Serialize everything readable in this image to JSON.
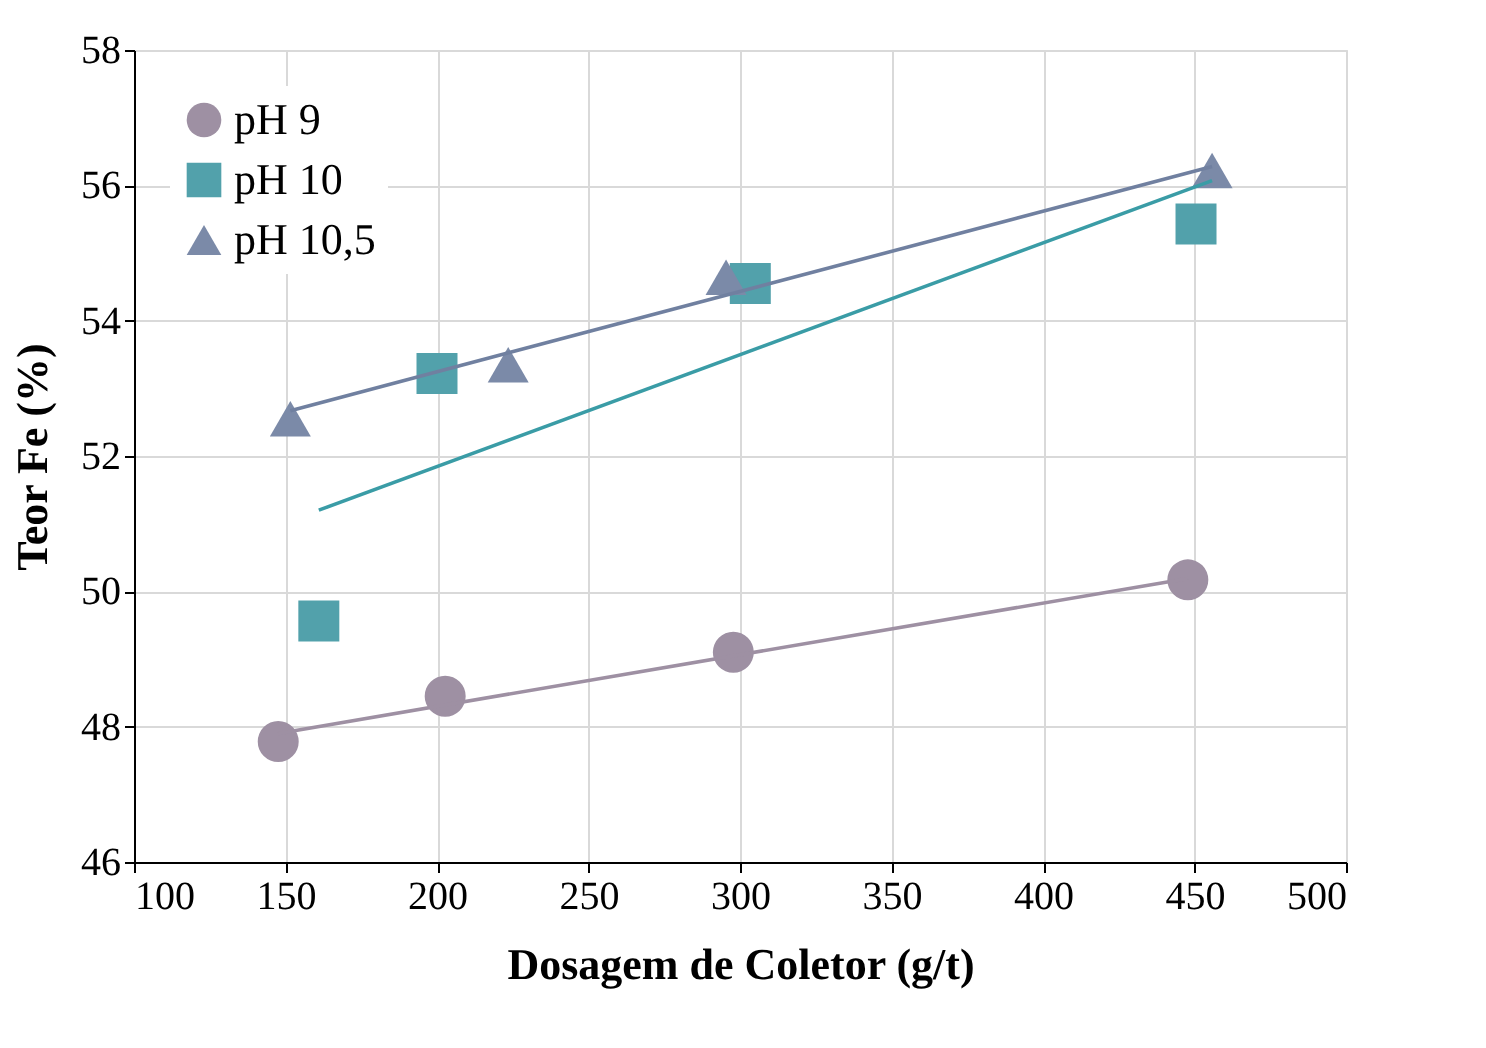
{
  "chart_data": {
    "type": "scatter",
    "xlabel": "Dosagem de Coletor (g/t)",
    "ylabel": "Teor Fe (%)",
    "xlim": [
      100,
      500
    ],
    "xticks": [
      100,
      150,
      200,
      250,
      300,
      350,
      400,
      450,
      500
    ],
    "ylim": [
      46,
      58
    ],
    "yticks": [
      46,
      48,
      50,
      52,
      54,
      56,
      58
    ],
    "grid": true,
    "legend": "top left",
    "series": [
      {
        "name": "pH 9",
        "marker": "circle",
        "color": "#9e90a3",
        "x": [
          147.6,
          202.7,
          297.8,
          447.8
        ],
        "values": [
          47.78,
          48.45,
          49.1,
          50.17
        ]
      },
      {
        "name": "pH 10",
        "marker": "square",
        "color": "#52a1ab",
        "x": [
          161,
          200,
          303.4,
          450.5
        ],
        "values": [
          49.56,
          53.22,
          54.55,
          55.43
        ]
      },
      {
        "name": "pH 10,5",
        "marker": "triangle",
        "color": "#7b8aa8",
        "x": [
          151.6,
          223.5,
          295.4,
          455.8
        ],
        "values": [
          52.55,
          53.35,
          54.64,
          56.22
        ]
      },
      {
        "type": "line",
        "color": "#9e90a3",
        "x": [
          147.6,
          447.8
        ],
        "values": [
          47.9,
          50.19
        ]
      },
      {
        "type": "line",
        "color": "#3a9ca6",
        "x": [
          161,
          455.8
        ],
        "values": [
          51.2,
          56.07
        ]
      },
      {
        "type": "line",
        "color": "#7080a0",
        "x": [
          151.6,
          455.8
        ],
        "values": [
          52.67,
          56.28
        ]
      }
    ]
  }
}
